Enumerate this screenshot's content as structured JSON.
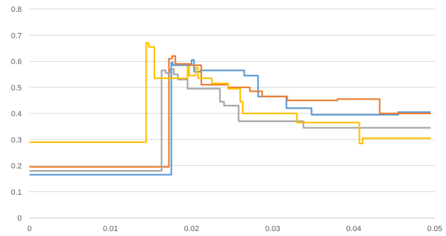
{
  "chart_data": {
    "type": "line",
    "title": "",
    "xlabel": "",
    "ylabel": "",
    "xlim": [
      0,
      0.05
    ],
    "ylim": [
      0,
      0.8
    ],
    "x_ticks": [
      0,
      0.01,
      0.02,
      0.03,
      0.04,
      0.05
    ],
    "x_tick_labels": [
      "0",
      "0.01",
      "0.02",
      "0.03",
      "0.04",
      "0.05"
    ],
    "y_ticks": [
      0,
      0.1,
      0.2,
      0.3,
      0.4,
      0.5,
      0.6,
      0.7,
      0.8
    ],
    "y_tick_labels": [
      "0",
      "0.1",
      "0.2",
      "0.3",
      "0.4",
      "0.5",
      "0.6",
      "0.7",
      "0.8"
    ],
    "grid": "horizontal",
    "legend": "none",
    "step": true,
    "series": [
      {
        "color": "#5b9bd5",
        "points": [
          [
            0,
            0.165
          ],
          [
            0.0175,
            0.165
          ],
          [
            0.0175,
            0.595
          ],
          [
            0.0177,
            0.595
          ],
          [
            0.0177,
            0.585
          ],
          [
            0.02,
            0.585
          ],
          [
            0.02,
            0.605
          ],
          [
            0.0203,
            0.605
          ],
          [
            0.0203,
            0.56
          ],
          [
            0.0211,
            0.56
          ],
          [
            0.0211,
            0.565
          ],
          [
            0.0265,
            0.565
          ],
          [
            0.0265,
            0.545
          ],
          [
            0.0282,
            0.545
          ],
          [
            0.0282,
            0.465
          ],
          [
            0.0317,
            0.465
          ],
          [
            0.0317,
            0.42
          ],
          [
            0.0348,
            0.42
          ],
          [
            0.0348,
            0.395
          ],
          [
            0.0455,
            0.395
          ],
          [
            0.0455,
            0.405
          ],
          [
            0.0495,
            0.405
          ]
        ]
      },
      {
        "color": "#ed7d31",
        "points": [
          [
            0,
            0.195
          ],
          [
            0.0172,
            0.195
          ],
          [
            0.0172,
            0.61
          ],
          [
            0.0176,
            0.61
          ],
          [
            0.0176,
            0.62
          ],
          [
            0.018,
            0.62
          ],
          [
            0.018,
            0.59
          ],
          [
            0.0198,
            0.59
          ],
          [
            0.0198,
            0.585
          ],
          [
            0.0212,
            0.585
          ],
          [
            0.0212,
            0.51
          ],
          [
            0.0245,
            0.51
          ],
          [
            0.0245,
            0.5
          ],
          [
            0.0272,
            0.5
          ],
          [
            0.0272,
            0.485
          ],
          [
            0.0287,
            0.485
          ],
          [
            0.0287,
            0.465
          ],
          [
            0.0318,
            0.465
          ],
          [
            0.0318,
            0.45
          ],
          [
            0.038,
            0.45
          ],
          [
            0.038,
            0.455
          ],
          [
            0.0432,
            0.455
          ],
          [
            0.0432,
            0.4
          ],
          [
            0.0495,
            0.4
          ]
        ]
      },
      {
        "color": "#a5a5a5",
        "points": [
          [
            0,
            0.18
          ],
          [
            0.0163,
            0.18
          ],
          [
            0.0163,
            0.565
          ],
          [
            0.0168,
            0.565
          ],
          [
            0.0168,
            0.555
          ],
          [
            0.0173,
            0.555
          ],
          [
            0.0173,
            0.57
          ],
          [
            0.0178,
            0.57
          ],
          [
            0.0178,
            0.55
          ],
          [
            0.0183,
            0.55
          ],
          [
            0.0183,
            0.53
          ],
          [
            0.0195,
            0.53
          ],
          [
            0.0195,
            0.495
          ],
          [
            0.0235,
            0.495
          ],
          [
            0.0235,
            0.445
          ],
          [
            0.024,
            0.445
          ],
          [
            0.024,
            0.43
          ],
          [
            0.0258,
            0.43
          ],
          [
            0.0258,
            0.37
          ],
          [
            0.0338,
            0.37
          ],
          [
            0.0338,
            0.345
          ],
          [
            0.0495,
            0.345
          ]
        ]
      },
      {
        "color": "#ffc000",
        "points": [
          [
            0,
            0.29
          ],
          [
            0.0144,
            0.29
          ],
          [
            0.0144,
            0.67
          ],
          [
            0.0147,
            0.67
          ],
          [
            0.0147,
            0.655
          ],
          [
            0.0154,
            0.655
          ],
          [
            0.0154,
            0.535
          ],
          [
            0.0195,
            0.535
          ],
          [
            0.0195,
            0.58
          ],
          [
            0.0197,
            0.58
          ],
          [
            0.0197,
            0.545
          ],
          [
            0.0205,
            0.545
          ],
          [
            0.0205,
            0.575
          ],
          [
            0.0208,
            0.575
          ],
          [
            0.0208,
            0.535
          ],
          [
            0.0225,
            0.535
          ],
          [
            0.0225,
            0.515
          ],
          [
            0.0245,
            0.515
          ],
          [
            0.0245,
            0.495
          ],
          [
            0.026,
            0.495
          ],
          [
            0.026,
            0.445
          ],
          [
            0.0263,
            0.445
          ],
          [
            0.0263,
            0.4
          ],
          [
            0.033,
            0.4
          ],
          [
            0.033,
            0.365
          ],
          [
            0.0407,
            0.365
          ],
          [
            0.0407,
            0.285
          ],
          [
            0.0411,
            0.285
          ],
          [
            0.0411,
            0.305
          ],
          [
            0.0495,
            0.305
          ]
        ]
      }
    ]
  }
}
